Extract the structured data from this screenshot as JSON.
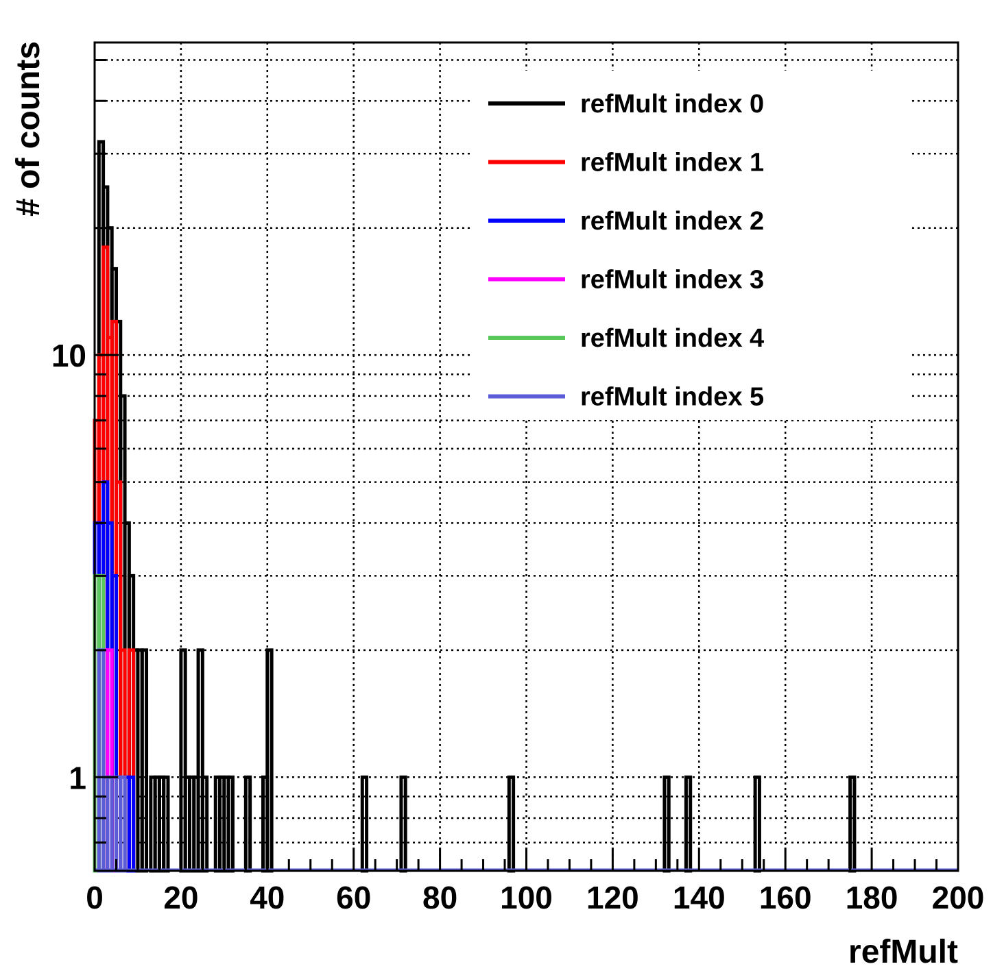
{
  "chart_data": {
    "type": "histogram",
    "xlabel": "refMult",
    "ylabel": "# of counts",
    "xlim": [
      0,
      200
    ],
    "ylim": [
      0.6,
      55
    ],
    "y_scale": "log",
    "grid": true,
    "legend_position": "top-right",
    "x_ticks": [
      "0",
      "20",
      "40",
      "60",
      "80",
      "100",
      "120",
      "140",
      "160",
      "180",
      "200"
    ],
    "y_ticks": [
      "1",
      "10"
    ],
    "series": [
      {
        "name": "refMult index 0",
        "color": "#000000",
        "bins": [
          {
            "x": 0,
            "y": 0
          },
          {
            "x": 1,
            "y": 32
          },
          {
            "x": 2,
            "y": 25
          },
          {
            "x": 3,
            "y": 20
          },
          {
            "x": 4,
            "y": 16
          },
          {
            "x": 5,
            "y": 12
          },
          {
            "x": 6,
            "y": 8
          },
          {
            "x": 7,
            "y": 4
          },
          {
            "x": 8,
            "y": 3
          },
          {
            "x": 9,
            "y": 2
          },
          {
            "x": 10,
            "y": 2
          },
          {
            "x": 11,
            "y": 2
          },
          {
            "x": 13,
            "y": 1
          },
          {
            "x": 14,
            "y": 1
          },
          {
            "x": 15,
            "y": 1
          },
          {
            "x": 16,
            "y": 1
          },
          {
            "x": 20,
            "y": 2
          },
          {
            "x": 21,
            "y": 1
          },
          {
            "x": 22,
            "y": 1
          },
          {
            "x": 23,
            "y": 1
          },
          {
            "x": 24,
            "y": 2
          },
          {
            "x": 25,
            "y": 1
          },
          {
            "x": 28,
            "y": 1
          },
          {
            "x": 29,
            "y": 1
          },
          {
            "x": 30,
            "y": 1
          },
          {
            "x": 31,
            "y": 1
          },
          {
            "x": 35,
            "y": 1
          },
          {
            "x": 39,
            "y": 1
          },
          {
            "x": 40,
            "y": 2
          },
          {
            "x": 62,
            "y": 1
          },
          {
            "x": 71,
            "y": 1
          },
          {
            "x": 96,
            "y": 1
          },
          {
            "x": 132,
            "y": 1
          },
          {
            "x": 137,
            "y": 1
          },
          {
            "x": 153,
            "y": 1
          },
          {
            "x": 175,
            "y": 1
          }
        ]
      },
      {
        "name": "refMult index 1",
        "color": "#ff0000",
        "bins": [
          {
            "x": 0,
            "y": 7
          },
          {
            "x": 1,
            "y": 10
          },
          {
            "x": 2,
            "y": 18
          },
          {
            "x": 3,
            "y": 11
          },
          {
            "x": 4,
            "y": 12
          },
          {
            "x": 5,
            "y": 5
          },
          {
            "x": 6,
            "y": 2
          },
          {
            "x": 8,
            "y": 2
          }
        ]
      },
      {
        "name": "refMult index 2",
        "color": "#0000ff",
        "bins": [
          {
            "x": 0,
            "y": 4
          },
          {
            "x": 1,
            "y": 4
          },
          {
            "x": 2,
            "y": 5
          },
          {
            "x": 3,
            "y": 4
          },
          {
            "x": 4,
            "y": 3
          },
          {
            "x": 5,
            "y": 1
          },
          {
            "x": 7,
            "y": 1
          },
          {
            "x": 8,
            "y": 1
          }
        ]
      },
      {
        "name": "refMult index 3",
        "color": "#ff00ff",
        "bins": [
          {
            "x": 2,
            "y": 2
          },
          {
            "x": 3,
            "y": 2
          },
          {
            "x": 4,
            "y": 1
          }
        ]
      },
      {
        "name": "refMult index 4",
        "color": "#5ac85a",
        "bins": [
          {
            "x": 0,
            "y": 3
          },
          {
            "x": 1,
            "y": 3
          }
        ]
      },
      {
        "name": "refMult index 5",
        "color": "#5c5cd6",
        "bins": [
          {
            "x": 1,
            "y": 2
          },
          {
            "x": 2,
            "y": 1
          },
          {
            "x": 3,
            "y": 1
          },
          {
            "x": 5,
            "y": 1
          },
          {
            "x": 6,
            "y": 1
          }
        ]
      }
    ]
  }
}
